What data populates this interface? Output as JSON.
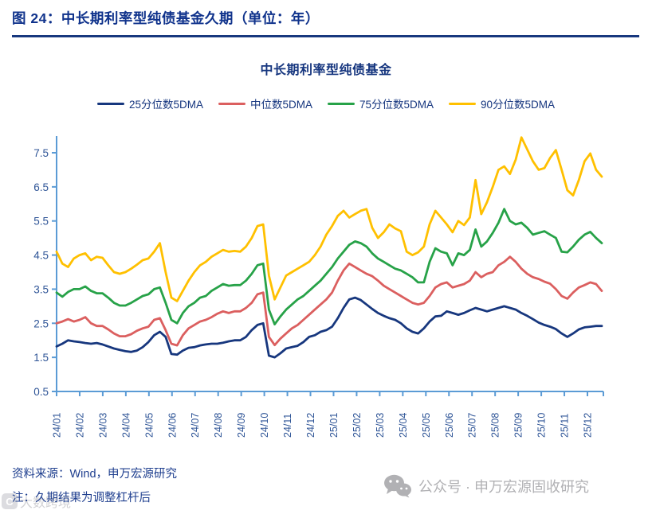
{
  "header": {
    "title": "图 24：中长期利率型纯债基金久期（单位：年）"
  },
  "chart": {
    "title": "中长期利率型纯债基金"
  },
  "footer": {
    "source": "资料来源：Wind，申万宏源研究",
    "note": "注：久期结果为调整杠杆后"
  },
  "wechat": {
    "icon": "wechat-icon",
    "label": "公众号 · 申万宏源固收研究"
  },
  "watermark": {
    "label": "大数跨境"
  },
  "colors": {
    "header_text": "#10338C",
    "axis_line": "#5B9BD5",
    "tick_label": "#2F5597",
    "legend_text": "#16367F",
    "footer_text": "#1F3F8F",
    "wechat_gray": "#B1B1B4"
  },
  "chart_data": {
    "type": "line",
    "title": "中长期利率型纯债基金",
    "xlabel": "",
    "ylabel": "",
    "grid": false,
    "legend_position": "top",
    "x_labels": [
      "24/01",
      "24/02",
      "24/03",
      "24/04",
      "24/05",
      "24/06",
      "24/07",
      "24/08",
      "24/09",
      "24/10",
      "24/11",
      "24/12",
      "25/01",
      "25/02",
      "25/03",
      "25/04",
      "25/05",
      "25/06",
      "25/07",
      "25/08",
      "25/09",
      "25/10",
      "25/11",
      "25/12"
    ],
    "points_per_month": 4,
    "y_ticks": [
      0.5,
      1.5,
      2.5,
      3.5,
      4.5,
      5.5,
      6.5,
      7.5
    ],
    "ylim": [
      0.5,
      8.05
    ],
    "series": [
      {
        "name": "25分位数5DMA",
        "color": "#17377E",
        "values": [
          1.82,
          1.9,
          2.0,
          1.97,
          1.95,
          1.92,
          1.9,
          1.92,
          1.88,
          1.82,
          1.76,
          1.72,
          1.68,
          1.66,
          1.7,
          1.8,
          1.95,
          2.15,
          2.25,
          2.1,
          1.6,
          1.58,
          1.7,
          1.78,
          1.8,
          1.85,
          1.88,
          1.9,
          1.9,
          1.93,
          1.97,
          2.0,
          2.0,
          2.1,
          2.3,
          2.45,
          2.5,
          1.55,
          1.5,
          1.62,
          1.76,
          1.8,
          1.84,
          1.95,
          2.1,
          2.15,
          2.25,
          2.3,
          2.4,
          2.65,
          2.95,
          3.2,
          3.25,
          3.18,
          3.05,
          2.92,
          2.8,
          2.72,
          2.65,
          2.6,
          2.5,
          2.35,
          2.25,
          2.2,
          2.35,
          2.55,
          2.7,
          2.72,
          2.85,
          2.8,
          2.75,
          2.8,
          2.88,
          2.95,
          2.9,
          2.85,
          2.9,
          2.95,
          3.0,
          2.95,
          2.9,
          2.8,
          2.72,
          2.62,
          2.52,
          2.45,
          2.4,
          2.33,
          2.2,
          2.1,
          2.2,
          2.32,
          2.38,
          2.4,
          2.42,
          2.42
        ]
      },
      {
        "name": "中位数5DMA",
        "color": "#DB5F5F",
        "values": [
          2.5,
          2.55,
          2.62,
          2.55,
          2.6,
          2.68,
          2.5,
          2.42,
          2.42,
          2.32,
          2.2,
          2.12,
          2.12,
          2.18,
          2.28,
          2.35,
          2.4,
          2.6,
          2.65,
          2.3,
          1.9,
          1.85,
          2.15,
          2.35,
          2.45,
          2.55,
          2.6,
          2.68,
          2.78,
          2.85,
          2.8,
          2.85,
          2.85,
          2.95,
          3.1,
          3.35,
          3.4,
          2.1,
          1.86,
          2.05,
          2.2,
          2.35,
          2.45,
          2.6,
          2.75,
          2.9,
          3.05,
          3.2,
          3.4,
          3.75,
          4.05,
          4.25,
          4.15,
          4.05,
          3.95,
          3.88,
          3.75,
          3.6,
          3.5,
          3.4,
          3.3,
          3.2,
          3.1,
          3.05,
          3.1,
          3.3,
          3.55,
          3.65,
          3.7,
          3.55,
          3.6,
          3.65,
          3.75,
          4.0,
          3.85,
          3.95,
          4.0,
          4.2,
          4.3,
          4.45,
          4.3,
          4.1,
          3.95,
          3.85,
          3.8,
          3.72,
          3.66,
          3.5,
          3.3,
          3.22,
          3.4,
          3.55,
          3.62,
          3.7,
          3.65,
          3.45
        ]
      },
      {
        "name": "75分位数5DMA",
        "color": "#27A248",
        "values": [
          3.4,
          3.28,
          3.42,
          3.5,
          3.5,
          3.58,
          3.45,
          3.38,
          3.38,
          3.25,
          3.1,
          3.02,
          3.02,
          3.1,
          3.2,
          3.3,
          3.35,
          3.5,
          3.55,
          3.1,
          2.6,
          2.5,
          2.8,
          3.0,
          3.1,
          3.25,
          3.3,
          3.45,
          3.55,
          3.65,
          3.6,
          3.62,
          3.62,
          3.75,
          3.95,
          4.2,
          4.25,
          2.9,
          2.47,
          2.7,
          2.9,
          3.05,
          3.2,
          3.3,
          3.45,
          3.6,
          3.75,
          3.95,
          4.15,
          4.4,
          4.6,
          4.8,
          4.9,
          4.85,
          4.75,
          4.55,
          4.4,
          4.3,
          4.2,
          4.1,
          4.05,
          3.95,
          3.85,
          3.7,
          3.7,
          4.3,
          4.7,
          4.6,
          4.55,
          4.2,
          4.55,
          4.5,
          4.65,
          5.25,
          4.75,
          4.9,
          5.15,
          5.45,
          5.85,
          5.5,
          5.4,
          5.45,
          5.3,
          5.1,
          5.15,
          5.2,
          5.1,
          5.0,
          4.6,
          4.58,
          4.75,
          4.95,
          5.1,
          5.18,
          5.0,
          4.85
        ]
      },
      {
        "name": "90分位数5DMA",
        "color": "#FFC000",
        "values": [
          4.6,
          4.25,
          4.15,
          4.4,
          4.5,
          4.55,
          4.35,
          4.45,
          4.42,
          4.2,
          4.0,
          3.95,
          4.0,
          4.1,
          4.22,
          4.35,
          4.4,
          4.6,
          4.85,
          4.0,
          3.25,
          3.15,
          3.45,
          3.75,
          4.0,
          4.2,
          4.3,
          4.45,
          4.55,
          4.65,
          4.6,
          4.62,
          4.6,
          4.75,
          5.0,
          5.35,
          5.4,
          3.9,
          3.2,
          3.55,
          3.9,
          4.0,
          4.1,
          4.2,
          4.3,
          4.5,
          4.75,
          5.1,
          5.35,
          5.65,
          5.8,
          5.6,
          5.7,
          5.8,
          5.85,
          5.3,
          5.0,
          5.17,
          5.4,
          5.28,
          5.2,
          4.6,
          4.5,
          4.58,
          4.75,
          5.4,
          5.8,
          5.6,
          5.4,
          5.17,
          5.5,
          5.38,
          5.6,
          6.7,
          5.7,
          6.05,
          6.5,
          7.0,
          7.1,
          6.88,
          7.3,
          7.95,
          7.6,
          7.25,
          7.0,
          7.05,
          7.35,
          7.58,
          7.0,
          6.4,
          6.25,
          6.7,
          7.25,
          7.48,
          7.0,
          6.8
        ]
      }
    ]
  }
}
